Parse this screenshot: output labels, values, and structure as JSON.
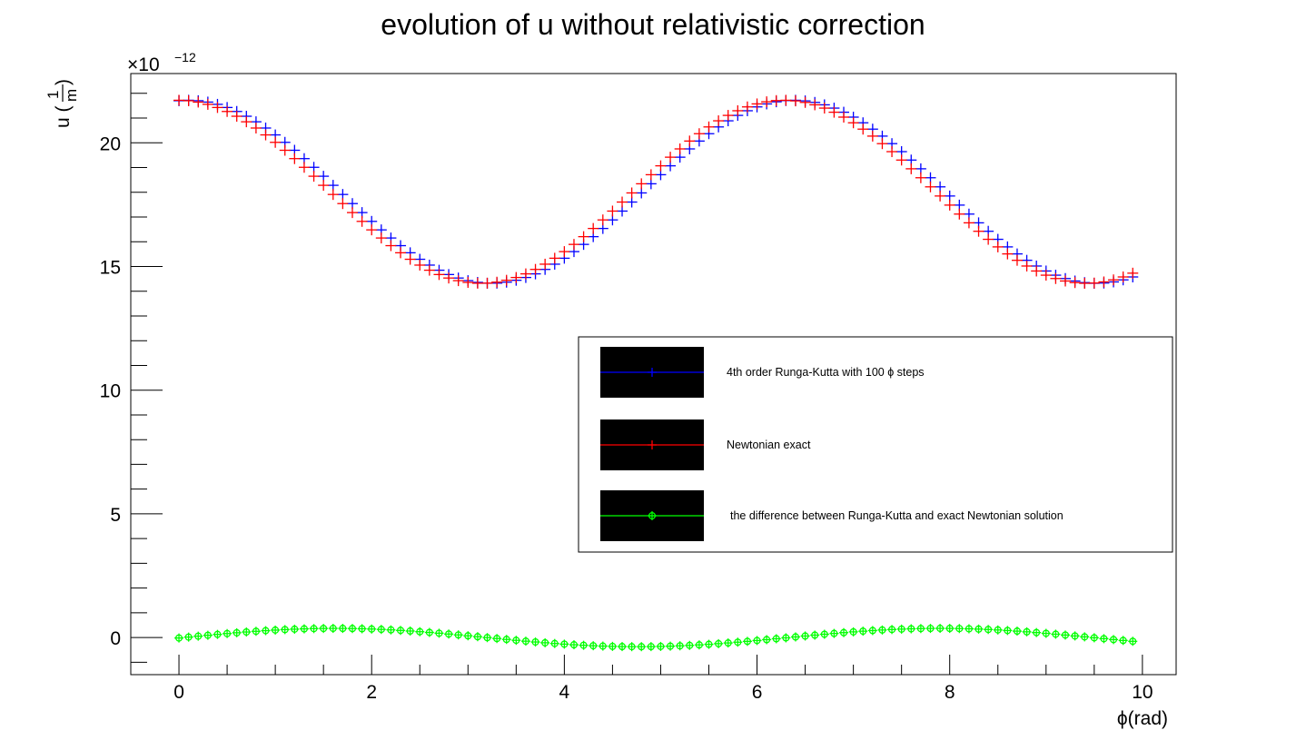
{
  "chart_data": {
    "type": "scatter",
    "title": "evolution of u without relativistic correction",
    "xlabel": "ϕ(rad)",
    "ylabel": {
      "prefix": "u (",
      "numerator": "1",
      "denominator": "m",
      "suffix": ")"
    },
    "y_exponent": {
      "base": "×10",
      "power": "−12"
    },
    "xlim": [
      -0.5,
      10.35
    ],
    "ylim": [
      -1.5,
      22.8
    ],
    "x_ticks": [
      0,
      2,
      4,
      6,
      8,
      10
    ],
    "x_tick_labels": [
      "0",
      "2",
      "4",
      "6",
      "8",
      "10"
    ],
    "y_ticks": [
      0,
      5,
      10,
      15,
      20
    ],
    "y_tick_labels": [
      "0",
      "5",
      "10",
      "15",
      "20"
    ],
    "grid": false,
    "legend_position": "center-right",
    "series": [
      {
        "name": "4th order Runga-Kutta with 100 ϕ steps",
        "color": "#0000ff",
        "marker": "plus",
        "model": {
          "mean": 18.02,
          "amplitude": 3.7,
          "frequency": 1.0,
          "phase_shift": 0.1,
          "x_start": 0.0,
          "x_step": 0.1,
          "count": 100
        }
      },
      {
        "name": "Newtonian exact",
        "color": "#ff0000",
        "marker": "plus",
        "model": {
          "mean": 18.02,
          "amplitude": 3.7,
          "frequency": 1.0,
          "phase_shift": 0.0,
          "x_start": 0.0,
          "x_step": 0.1,
          "count": 100
        }
      },
      {
        "name": "the difference between Runga-Kutta and exact Newtonian solution",
        "color": "#00ff00",
        "marker": "open-circle-plus",
        "model": {
          "difference_of": [
            0,
            1
          ],
          "x_start": 0.0,
          "x_step": 0.1,
          "count": 100
        }
      }
    ]
  }
}
